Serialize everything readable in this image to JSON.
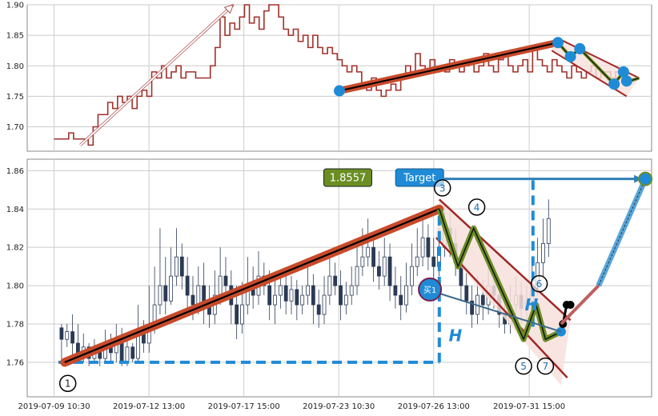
{
  "chart_data": {
    "type": "candlestick",
    "colors": {
      "price_line": "#a0302a",
      "trend_band": "#c84a2a",
      "channel": "#a02828",
      "channel_fill": "#f7e1dc",
      "zigzag": "#6b8e23",
      "target_blue": "#1f8bd6",
      "candle_dark": "#2b3a55",
      "grid": "#cccccc",
      "badge_green": "#6b8e23"
    },
    "x_tick_labels": [
      "2019-07-09 10:30",
      "2019-07-12 13:00",
      "2019-07-17 15:00",
      "2019-07-23 10:30",
      "2019-07-26 13:00",
      "2019-07-31 15:00"
    ],
    "top_panel": {
      "ylim": [
        1.66,
        1.9
      ],
      "yticks": [
        "1.70",
        "1.75",
        "1.80",
        "1.85",
        "1.90"
      ],
      "price_series": [
        1.68,
        1.68,
        1.68,
        1.69,
        1.68,
        1.68,
        1.68,
        1.67,
        1.7,
        1.72,
        1.72,
        1.74,
        1.73,
        1.75,
        1.74,
        1.75,
        1.73,
        1.75,
        1.76,
        1.75,
        1.79,
        1.78,
        1.8,
        1.78,
        1.79,
        1.8,
        1.78,
        1.79,
        1.79,
        1.78,
        1.78,
        1.78,
        1.8,
        1.83,
        1.88,
        1.85,
        1.87,
        1.86,
        1.88,
        1.9,
        1.87,
        1.88,
        1.86,
        1.89,
        1.9,
        1.9,
        1.88,
        1.86,
        1.85,
        1.86,
        1.84,
        1.85,
        1.83,
        1.85,
        1.83,
        1.82,
        1.83,
        1.82,
        1.81,
        1.8,
        1.79,
        1.8,
        1.79,
        1.77,
        1.76,
        1.78,
        1.76,
        1.75,
        1.76,
        1.77,
        1.76,
        1.78,
        1.8,
        1.79,
        1.82,
        1.8,
        1.79,
        1.81,
        1.79,
        1.8,
        1.79,
        1.81,
        1.8,
        1.79,
        1.8,
        1.81,
        1.79,
        1.8,
        1.82,
        1.8,
        1.79,
        1.81,
        1.82,
        1.8,
        1.79,
        1.8,
        1.81,
        1.79,
        1.83,
        1.81,
        1.8,
        1.79,
        1.81,
        1.8,
        1.79,
        1.78,
        1.8,
        1.79,
        1.78,
        1.79,
        1.8,
        1.78,
        1.79,
        1.79,
        1.78,
        1.79,
        1.78,
        1.78
      ],
      "trend_line": {
        "from": [
          0.5,
          1.759
        ],
        "to": [
          0.85,
          1.838
        ]
      },
      "arrow": {
        "from": [
          0.085,
          1.67
        ],
        "to": [
          0.33,
          1.9
        ]
      },
      "dots": [
        [
          0.5,
          1.759
        ],
        [
          0.85,
          1.838
        ],
        [
          0.87,
          1.815
        ],
        [
          0.885,
          1.828
        ],
        [
          0.94,
          1.77
        ],
        [
          0.955,
          1.79
        ],
        [
          0.96,
          1.775
        ]
      ]
    },
    "bottom_panel": {
      "ylim": [
        1.742,
        1.866
      ],
      "yticks": [
        "1.76",
        "1.78",
        "1.80",
        "1.82",
        "1.84",
        "1.86"
      ],
      "trend_line": {
        "from": [
          0.06,
          1.76
        ],
        "to": [
          0.66,
          1.84
        ]
      },
      "zigzag": [
        [
          0.66,
          1.84
        ],
        [
          0.69,
          1.81
        ],
        [
          0.715,
          1.83
        ],
        [
          0.795,
          1.772
        ],
        [
          0.815,
          1.79
        ],
        [
          0.83,
          1.772
        ],
        [
          0.855,
          1.776
        ]
      ],
      "channel_upper": {
        "from": [
          0.66,
          1.845
        ],
        "to": [
          0.87,
          1.782
        ]
      },
      "channel_lower": {
        "from": [
          0.655,
          1.825
        ],
        "to": [
          0.865,
          1.752
        ]
      },
      "target": {
        "value": "1.8557",
        "label": "Target",
        "point": [
          0.99,
          1.8557
        ]
      },
      "h_label": "H",
      "buy_label": "买1",
      "wave_labels": [
        "1",
        "3",
        "4",
        "5",
        "6",
        "7"
      ],
      "wave_points": [
        [
          0.065,
          1.749
        ],
        [
          0.665,
          1.851
        ],
        [
          0.72,
          1.841
        ],
        [
          0.795,
          1.758
        ],
        [
          0.82,
          1.801
        ],
        [
          0.83,
          1.758
        ]
      ],
      "baseline": 1.76,
      "candles": [
        {
          "o": 1.778,
          "c": 1.772,
          "h": 1.78,
          "l": 1.76
        },
        {
          "o": 1.772,
          "c": 1.776,
          "h": 1.78,
          "l": 1.768
        },
        {
          "o": 1.776,
          "c": 1.77,
          "h": 1.785,
          "l": 1.762
        },
        {
          "o": 1.77,
          "c": 1.765,
          "h": 1.78,
          "l": 1.76
        },
        {
          "o": 1.765,
          "c": 1.768,
          "h": 1.775,
          "l": 1.76
        },
        {
          "o": 1.768,
          "c": 1.762,
          "h": 1.77,
          "l": 1.758
        },
        {
          "o": 1.762,
          "c": 1.766,
          "h": 1.772,
          "l": 1.76
        },
        {
          "o": 1.766,
          "c": 1.762,
          "h": 1.77,
          "l": 1.758
        },
        {
          "o": 1.762,
          "c": 1.77,
          "h": 1.777,
          "l": 1.76
        },
        {
          "o": 1.77,
          "c": 1.765,
          "h": 1.775,
          "l": 1.76
        },
        {
          "o": 1.765,
          "c": 1.77,
          "h": 1.78,
          "l": 1.76
        },
        {
          "o": 1.77,
          "c": 1.76,
          "h": 1.778,
          "l": 1.758
        },
        {
          "o": 1.76,
          "c": 1.768,
          "h": 1.772,
          "l": 1.758
        },
        {
          "o": 1.768,
          "c": 1.762,
          "h": 1.77,
          "l": 1.76
        },
        {
          "o": 1.762,
          "c": 1.775,
          "h": 1.79,
          "l": 1.76
        },
        {
          "o": 1.775,
          "c": 1.77,
          "h": 1.782,
          "l": 1.765
        },
        {
          "o": 1.77,
          "c": 1.78,
          "h": 1.8,
          "l": 1.765
        },
        {
          "o": 1.78,
          "c": 1.79,
          "h": 1.81,
          "l": 1.775
        },
        {
          "o": 1.79,
          "c": 1.8,
          "h": 1.83,
          "l": 1.785
        },
        {
          "o": 1.8,
          "c": 1.792,
          "h": 1.815,
          "l": 1.785
        },
        {
          "o": 1.792,
          "c": 1.805,
          "h": 1.82,
          "l": 1.79
        },
        {
          "o": 1.805,
          "c": 1.815,
          "h": 1.83,
          "l": 1.8
        },
        {
          "o": 1.815,
          "c": 1.805,
          "h": 1.822,
          "l": 1.798
        },
        {
          "o": 1.805,
          "c": 1.795,
          "h": 1.815,
          "l": 1.788
        },
        {
          "o": 1.795,
          "c": 1.79,
          "h": 1.805,
          "l": 1.782
        },
        {
          "o": 1.79,
          "c": 1.8,
          "h": 1.81,
          "l": 1.785
        },
        {
          "o": 1.8,
          "c": 1.79,
          "h": 1.812,
          "l": 1.78
        },
        {
          "o": 1.79,
          "c": 1.785,
          "h": 1.8,
          "l": 1.778
        },
        {
          "o": 1.785,
          "c": 1.795,
          "h": 1.808,
          "l": 1.78
        },
        {
          "o": 1.795,
          "c": 1.805,
          "h": 1.82,
          "l": 1.79
        },
        {
          "o": 1.805,
          "c": 1.8,
          "h": 1.815,
          "l": 1.792
        },
        {
          "o": 1.8,
          "c": 1.79,
          "h": 1.808,
          "l": 1.78
        },
        {
          "o": 1.79,
          "c": 1.78,
          "h": 1.8,
          "l": 1.772
        },
        {
          "o": 1.78,
          "c": 1.79,
          "h": 1.802,
          "l": 1.775
        },
        {
          "o": 1.79,
          "c": 1.8,
          "h": 1.815,
          "l": 1.785
        },
        {
          "o": 1.8,
          "c": 1.795,
          "h": 1.81,
          "l": 1.788
        },
        {
          "o": 1.795,
          "c": 1.805,
          "h": 1.818,
          "l": 1.79
        },
        {
          "o": 1.805,
          "c": 1.8,
          "h": 1.812,
          "l": 1.795
        },
        {
          "o": 1.8,
          "c": 1.79,
          "h": 1.808,
          "l": 1.782
        },
        {
          "o": 1.79,
          "c": 1.795,
          "h": 1.805,
          "l": 1.78
        },
        {
          "o": 1.795,
          "c": 1.8,
          "h": 1.808,
          "l": 1.788
        },
        {
          "o": 1.8,
          "c": 1.792,
          "h": 1.805,
          "l": 1.785
        },
        {
          "o": 1.792,
          "c": 1.798,
          "h": 1.805,
          "l": 1.785
        },
        {
          "o": 1.798,
          "c": 1.79,
          "h": 1.803,
          "l": 1.782
        },
        {
          "o": 1.79,
          "c": 1.795,
          "h": 1.8,
          "l": 1.785
        },
        {
          "o": 1.795,
          "c": 1.8,
          "h": 1.81,
          "l": 1.79
        },
        {
          "o": 1.8,
          "c": 1.79,
          "h": 1.806,
          "l": 1.78
        },
        {
          "o": 1.79,
          "c": 1.785,
          "h": 1.798,
          "l": 1.778
        },
        {
          "o": 1.785,
          "c": 1.795,
          "h": 1.805,
          "l": 1.78
        },
        {
          "o": 1.795,
          "c": 1.805,
          "h": 1.815,
          "l": 1.79
        },
        {
          "o": 1.805,
          "c": 1.8,
          "h": 1.812,
          "l": 1.795
        },
        {
          "o": 1.8,
          "c": 1.79,
          "h": 1.808,
          "l": 1.782
        },
        {
          "o": 1.79,
          "c": 1.795,
          "h": 1.802,
          "l": 1.785
        },
        {
          "o": 1.795,
          "c": 1.8,
          "h": 1.81,
          "l": 1.79
        },
        {
          "o": 1.8,
          "c": 1.81,
          "h": 1.82,
          "l": 1.795
        },
        {
          "o": 1.81,
          "c": 1.815,
          "h": 1.83,
          "l": 1.805
        },
        {
          "o": 1.815,
          "c": 1.82,
          "h": 1.835,
          "l": 1.81
        },
        {
          "o": 1.82,
          "c": 1.81,
          "h": 1.828,
          "l": 1.802
        },
        {
          "o": 1.81,
          "c": 1.805,
          "h": 1.818,
          "l": 1.798
        },
        {
          "o": 1.805,
          "c": 1.815,
          "h": 1.825,
          "l": 1.8
        },
        {
          "o": 1.815,
          "c": 1.8,
          "h": 1.822,
          "l": 1.792
        },
        {
          "o": 1.8,
          "c": 1.795,
          "h": 1.81,
          "l": 1.788
        },
        {
          "o": 1.795,
          "c": 1.79,
          "h": 1.805,
          "l": 1.782
        },
        {
          "o": 1.79,
          "c": 1.8,
          "h": 1.812,
          "l": 1.786
        },
        {
          "o": 1.8,
          "c": 1.81,
          "h": 1.822,
          "l": 1.795
        },
        {
          "o": 1.81,
          "c": 1.815,
          "h": 1.83,
          "l": 1.805
        },
        {
          "o": 1.815,
          "c": 1.825,
          "h": 1.838,
          "l": 1.81
        },
        {
          "o": 1.825,
          "c": 1.815,
          "h": 1.832,
          "l": 1.808
        },
        {
          "o": 1.815,
          "c": 1.81,
          "h": 1.825,
          "l": 1.8
        },
        {
          "o": 1.81,
          "c": 1.82,
          "h": 1.83,
          "l": 1.805
        },
        {
          "o": 1.82,
          "c": 1.83,
          "h": 1.842,
          "l": 1.815
        },
        {
          "o": 1.83,
          "c": 1.822,
          "h": 1.838,
          "l": 1.815
        },
        {
          "o": 1.822,
          "c": 1.812,
          "h": 1.83,
          "l": 1.805
        },
        {
          "o": 1.812,
          "c": 1.8,
          "h": 1.82,
          "l": 1.792
        },
        {
          "o": 1.8,
          "c": 1.792,
          "h": 1.808,
          "l": 1.785
        },
        {
          "o": 1.792,
          "c": 1.785,
          "h": 1.8,
          "l": 1.778
        },
        {
          "o": 1.785,
          "c": 1.795,
          "h": 1.805,
          "l": 1.78
        },
        {
          "o": 1.795,
          "c": 1.79,
          "h": 1.803,
          "l": 1.782
        },
        {
          "o": 1.79,
          "c": 1.8,
          "h": 1.81,
          "l": 1.785
        },
        {
          "o": 1.8,
          "c": 1.795,
          "h": 1.808,
          "l": 1.788
        },
        {
          "o": 1.795,
          "c": 1.785,
          "h": 1.802,
          "l": 1.778
        },
        {
          "o": 1.785,
          "c": 1.78,
          "h": 1.795,
          "l": 1.775
        },
        {
          "o": 1.78,
          "c": 1.79,
          "h": 1.8,
          "l": 1.775
        },
        {
          "o": 1.79,
          "c": 1.795,
          "h": 1.805,
          "l": 1.785
        },
        {
          "o": 1.795,
          "c": 1.788,
          "h": 1.802,
          "l": 1.78
        },
        {
          "o": 1.788,
          "c": 1.792,
          "h": 1.8,
          "l": 1.782
        },
        {
          "o": 1.792,
          "c": 1.8,
          "h": 1.812,
          "l": 1.788
        },
        {
          "o": 1.8,
          "c": 1.812,
          "h": 1.825,
          "l": 1.795
        },
        {
          "o": 1.812,
          "c": 1.822,
          "h": 1.835,
          "l": 1.805
        },
        {
          "o": 1.822,
          "c": 1.835,
          "h": 1.845,
          "l": 1.815
        }
      ]
    }
  }
}
